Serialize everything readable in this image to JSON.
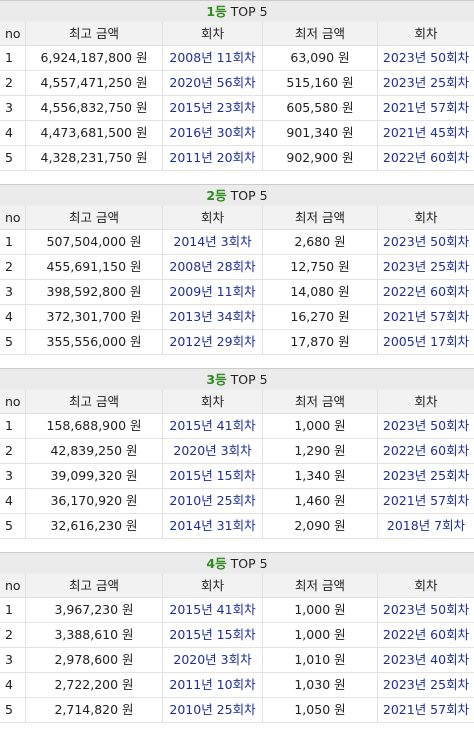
{
  "sections": [
    {
      "rank": "1등",
      "title": "TOP 5",
      "columns": [
        "no",
        "최고 금액",
        "회차",
        "최저 금액",
        "회차"
      ],
      "rows": [
        [
          "1",
          "6,924,187,800 원",
          "2008년 11회차",
          "63,090 원",
          "2023년 50회차"
        ],
        [
          "2",
          "4,557,471,250 원",
          "2020년 56회차",
          "515,160 원",
          "2023년 25회차"
        ],
        [
          "3",
          "4,556,832,750 원",
          "2015년 23회차",
          "605,580 원",
          "2021년 57회차"
        ],
        [
          "4",
          "4,473,681,500 원",
          "2016년 30회차",
          "901,340 원",
          "2021년 45회차"
        ],
        [
          "5",
          "4,328,231,750 원",
          "2011년 20회차",
          "902,900 원",
          "2022년 60회차"
        ]
      ]
    },
    {
      "rank": "2등",
      "title": "TOP 5",
      "columns": [
        "no",
        "최고 금액",
        "회차",
        "최저 금액",
        "회차"
      ],
      "rows": [
        [
          "1",
          "507,504,000 원",
          "2014년 3회차",
          "2,680 원",
          "2023년 50회차"
        ],
        [
          "2",
          "455,691,150 원",
          "2008년 28회차",
          "12,750 원",
          "2023년 25회차"
        ],
        [
          "3",
          "398,592,800 원",
          "2009년 11회차",
          "14,080 원",
          "2022년 60회차"
        ],
        [
          "4",
          "372,301,700 원",
          "2013년 34회차",
          "16,270 원",
          "2021년 57회차"
        ],
        [
          "5",
          "355,556,000 원",
          "2012년 29회차",
          "17,870 원",
          "2005년 17회차"
        ]
      ]
    },
    {
      "rank": "3등",
      "title": "TOP 5",
      "columns": [
        "no",
        "최고 금액",
        "회차",
        "최저 금액",
        "회차"
      ],
      "rows": [
        [
          "1",
          "158,688,900 원",
          "2015년 41회차",
          "1,000 원",
          "2023년 50회차"
        ],
        [
          "2",
          "42,839,250 원",
          "2020년 3회차",
          "1,290 원",
          "2022년 60회차"
        ],
        [
          "3",
          "39,099,320 원",
          "2015년 15회차",
          "1,340 원",
          "2023년 25회차"
        ],
        [
          "4",
          "36,170,920 원",
          "2010년 25회차",
          "1,460 원",
          "2021년 57회차"
        ],
        [
          "5",
          "32,616,230 원",
          "2014년 31회차",
          "2,090 원",
          "2018년 7회차"
        ]
      ]
    },
    {
      "rank": "4등",
      "title": "TOP 5",
      "columns": [
        "no",
        "최고 금액",
        "회차",
        "최저 금액",
        "회차"
      ],
      "rows": [
        [
          "1",
          "3,967,230 원",
          "2015년 41회차",
          "1,000 원",
          "2023년 50회차"
        ],
        [
          "2",
          "3,388,610 원",
          "2015년 15회차",
          "1,000 원",
          "2022년 60회차"
        ],
        [
          "3",
          "2,978,600 원",
          "2020년 3회차",
          "1,010 원",
          "2023년 40회차"
        ],
        [
          "4",
          "2,722,200 원",
          "2011년 10회차",
          "1,030 원",
          "2023년 25회차"
        ],
        [
          "5",
          "2,714,820 원",
          "2010년 25회차",
          "1,050 원",
          "2021년 57회차"
        ]
      ]
    }
  ]
}
